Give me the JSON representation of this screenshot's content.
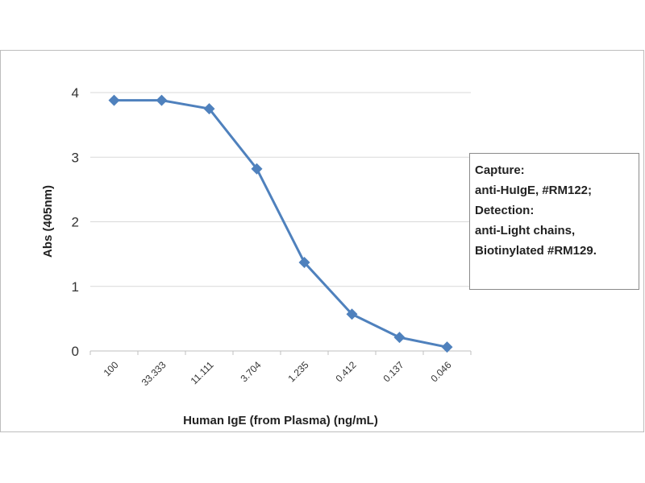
{
  "chart_data": {
    "type": "line",
    "title": "",
    "xlabel": "Human IgE (from Plasma) (ng/mL)",
    "ylabel": "Abs (405nm)",
    "categories": [
      "100",
      "33.333",
      "11.111",
      "3.704",
      "1.235",
      "0.412",
      "0.137",
      "0.046"
    ],
    "series": [
      {
        "values": [
          3.88,
          3.88,
          3.75,
          2.82,
          1.37,
          0.57,
          0.21,
          0.06
        ]
      }
    ],
    "ylim": [
      0,
      4
    ],
    "yticks": [
      "0",
      "1",
      "2",
      "3",
      "4"
    ],
    "grid": "horizontal",
    "colors": {
      "series": "#4f81bd",
      "grid": "#d9d9d9",
      "axis": "#bfbfbf"
    },
    "annotation": {
      "lines": [
        "Capture:",
        "anti-HuIgE, #RM122;",
        "Detection:",
        "anti-Light chains,",
        "Biotinylated #RM129."
      ]
    }
  }
}
